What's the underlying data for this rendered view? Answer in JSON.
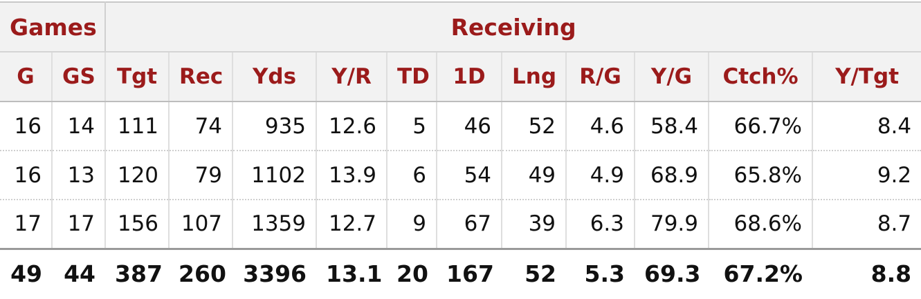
{
  "groups": {
    "games": "Games",
    "receiving": "Receiving"
  },
  "columns": [
    "G",
    "GS",
    "Tgt",
    "Rec",
    "Yds",
    "Y/R",
    "TD",
    "1D",
    "Lng",
    "R/G",
    "Y/G",
    "Ctch%",
    "Y/Tgt"
  ],
  "rows": [
    [
      "16",
      "14",
      "111",
      "74",
      "935",
      "12.6",
      "5",
      "46",
      "52",
      "4.6",
      "58.4",
      "66.7%",
      "8.4"
    ],
    [
      "16",
      "13",
      "120",
      "79",
      "1102",
      "13.9",
      "6",
      "54",
      "49",
      "4.9",
      "68.9",
      "65.8%",
      "9.2"
    ],
    [
      "17",
      "17",
      "156",
      "107",
      "1359",
      "12.7",
      "9",
      "67",
      "39",
      "6.3",
      "79.9",
      "68.6%",
      "8.7"
    ]
  ],
  "totals": [
    "49",
    "44",
    "387",
    "260",
    "3396",
    "13.1",
    "20",
    "167",
    "52",
    "5.3",
    "69.3",
    "67.2%",
    "8.8"
  ],
  "colors": {
    "header_text": "#9b1b1b",
    "header_bg": "#f2f2f2",
    "body_text": "#111111"
  }
}
